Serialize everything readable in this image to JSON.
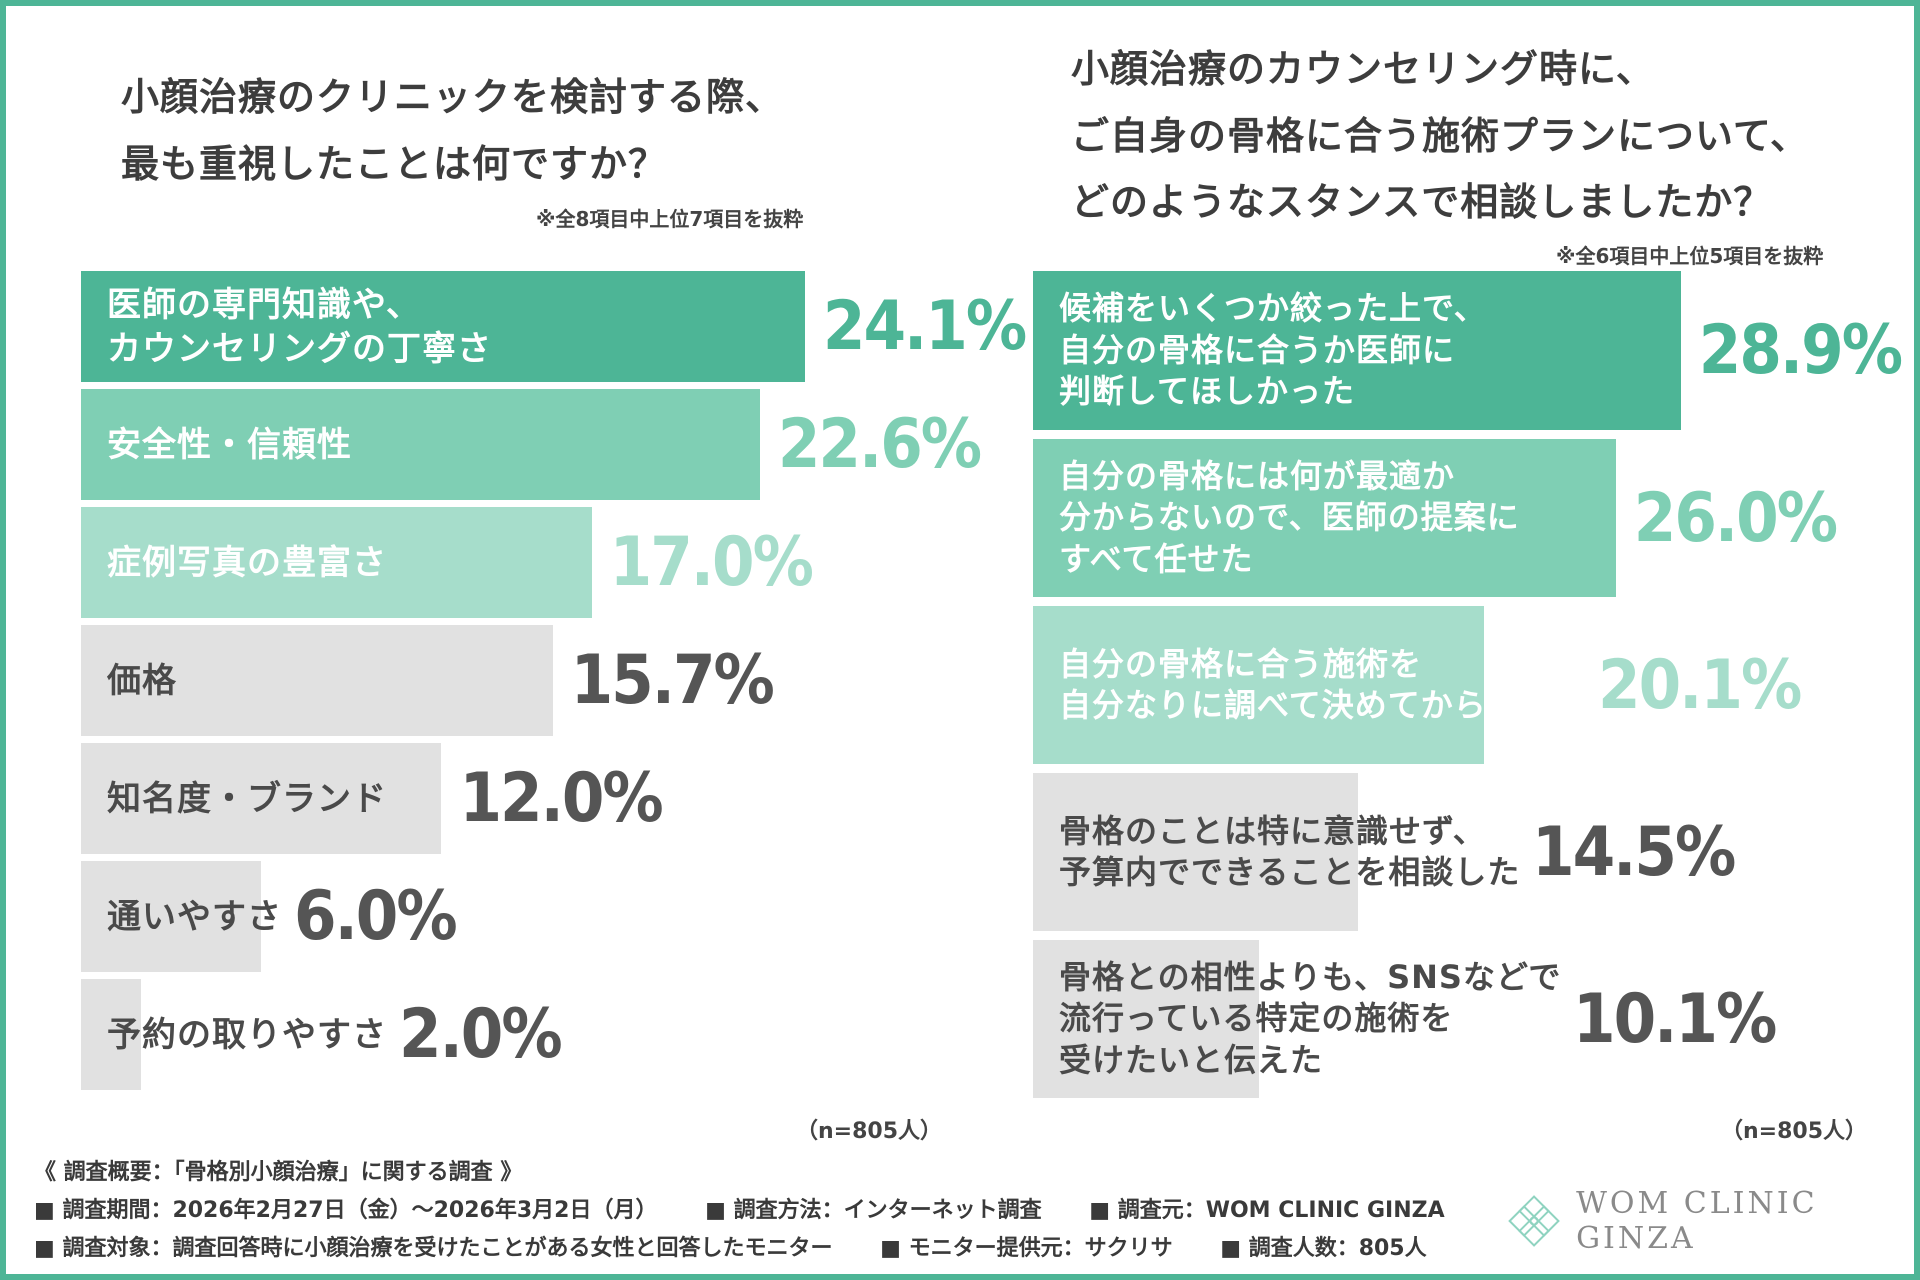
{
  "left": {
    "title": "小顔治療のクリニックを検討する際、\n最も重視したことは何ですか？",
    "note": "※全8項目中上位7項目を抜粋",
    "n_label": "（n=805人）"
  },
  "right": {
    "title": "小顔治療のカウンセリング時に、\nご自身の骨格に合う施術プランについて、\nどのようなスタンスで相談しましたか？",
    "note": "※全6項目中上位5項目を抜粋",
    "n_label": "（n=805人）"
  },
  "chart_data": [
    {
      "type": "bar",
      "orientation": "horizontal",
      "title": "小顔治療のクリニックを検討する際、最も重視したことは何ですか？",
      "categories": [
        "医師の専門知識や、\nカウンセリングの丁寧さ",
        "安全性・信頼性",
        "症例写真の豊富さ",
        "価格",
        "知名度・ブランド",
        "通いやすさ",
        "予約の取りやすさ"
      ],
      "values": [
        24.1,
        22.6,
        17.0,
        15.7,
        12.0,
        6.0,
        2.0
      ],
      "value_labels": [
        "24.1%",
        "22.6%",
        "17.0%",
        "15.7%",
        "12.0%",
        "6.0%",
        "2.0%"
      ],
      "unit": "%",
      "xlim": [
        0,
        26.3
      ],
      "colors": [
        "#4db596",
        "#7fcfb4",
        "#a6ddcb",
        "#e1e1e1",
        "#e1e1e1",
        "#e1e1e1",
        "#e1e1e1"
      ],
      "label_colors": [
        "#ffffff",
        "#ffffff",
        "#ffffff",
        "#4a4a4a",
        "#4a4a4a",
        "#4a4a4a",
        "#4a4a4a"
      ],
      "value_colors": [
        "#4db596",
        "#7fcfb4",
        "#a6ddcb",
        "#555555",
        "#555555",
        "#555555",
        "#555555"
      ]
    },
    {
      "type": "bar",
      "orientation": "horizontal",
      "title": "小顔治療のカウンセリング時に、ご自身の骨格に合う施術プランについて、どのようなスタンスで相談しましたか？",
      "categories": [
        "候補をいくつか絞った上で、\n自分の骨格に合うか医師に\n判断してほしかった",
        "自分の骨格には何が最適か\n分からないので、医師の提案に\nすべて任せた",
        "自分の骨格に合う施術を\n自分なりに調べて決めてから行った",
        "骨格のことは特に意識せず、\n予算内でできることを相談した",
        "骨格との相性よりも、SNSなどで\n流行っている特定の施術を\n受けたいと伝えた"
      ],
      "values": [
        28.9,
        26.0,
        20.1,
        14.5,
        10.1
      ],
      "value_labels": [
        "28.9%",
        "26.0%",
        "20.1%",
        "14.5%",
        "10.1%"
      ],
      "unit": "%",
      "xlim": [
        0,
        29.0
      ],
      "colors": [
        "#4db596",
        "#7fcfb4",
        "#a6ddcb",
        "#e1e1e1",
        "#e1e1e1"
      ],
      "label_colors": [
        "#ffffff",
        "#ffffff",
        "#ffffff",
        "#4a4a4a",
        "#4a4a4a"
      ],
      "value_colors": [
        "#4db596",
        "#7fcfb4",
        "#a6ddcb",
        "#555555",
        "#555555"
      ]
    }
  ],
  "footer": {
    "summary": "《 調査概要：「骨格別小顔治療」に関する調査 》",
    "period": "■ 調査期間：2026年2月27日（金）～2026年3月2日（月）",
    "method": "■ 調査方法：インターネット調査",
    "source": "■ 調査元：WOM CLINIC GINZA",
    "target": "■ 調査対象：調査回答時に小顔治療を受けたことがある女性と回答したモニター",
    "provider": "■ モニター提供元：サクリサ",
    "count": "■ 調査人数：805人"
  },
  "logo": {
    "text": "WOM CLINIC GINZA",
    "icon": "lotus-diamond-icon",
    "color": "#8fd3c0"
  },
  "colors": {
    "accent": "#4db596",
    "border": "#4db596"
  }
}
